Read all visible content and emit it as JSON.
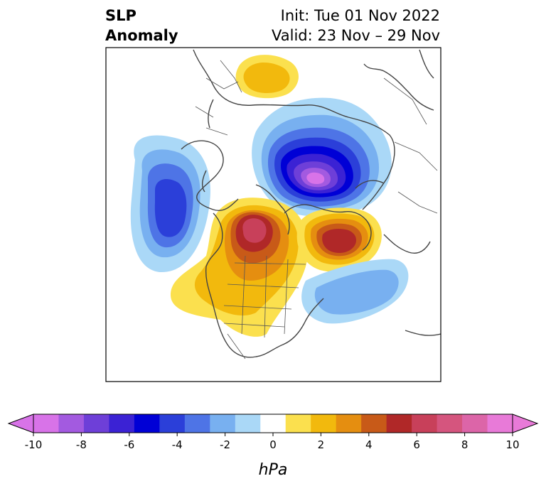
{
  "title": {
    "left_line1": "SLP",
    "left_line2": "Anomaly",
    "right_line1": "Init: Tue 01 Nov 2022",
    "right_line2": "Valid: 23 Nov – 29 Nov"
  },
  "colorbar": {
    "unit_label": "hPa",
    "ticks": [
      "-10",
      "-8",
      "-6",
      "-4",
      "-2",
      "0",
      "2",
      "4",
      "6",
      "8",
      "10"
    ],
    "extend": "both",
    "colors": [
      "#d873e8",
      "#a35ae0",
      "#6e3fd8",
      "#3b22d4",
      "#0000d6",
      "#2b3fd9",
      "#4e74e6",
      "#78b0f0",
      "#aad8f7",
      "#ffffff",
      "#fbe04e",
      "#f2b90d",
      "#e58e10",
      "#c85a18",
      "#b02828",
      "#c8405a",
      "#d5557e",
      "#dc65a8",
      "#e87ad8"
    ]
  }
}
